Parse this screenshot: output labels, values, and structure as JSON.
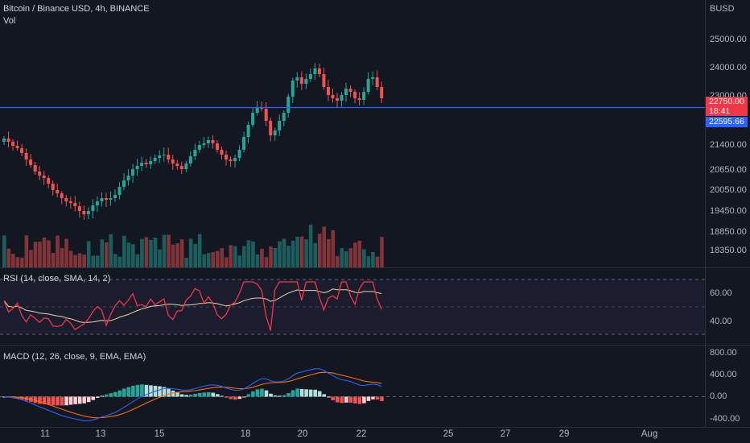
{
  "header": {
    "symbol_title": "Bitcoin / Binance USD, 4h, BINANCE",
    "volume_label": "Vol",
    "currency": "BUSD"
  },
  "price_axis": {
    "labels": [
      "25000.00",
      "24000.00",
      "23000.00",
      "21400.00",
      "20650.00",
      "20050.00",
      "19450.00",
      "18850.00",
      "18350.00"
    ],
    "current_price": "22750.00",
    "countdown": "18:41",
    "line_price": "22595.66"
  },
  "rsi": {
    "title": "RSI (14, close, SMA, 14, 2)",
    "axis_labels": [
      "60.00",
      "40.00"
    ]
  },
  "macd": {
    "title": "MACD (12, 26, close, 9, EMA, EMA)",
    "axis_labels": [
      "800.00",
      "400.00",
      "0.00",
      "-400.00"
    ]
  },
  "time_axis": {
    "labels": [
      "11",
      "13",
      "15",
      "18",
      "20",
      "22",
      "25",
      "27",
      "29",
      "Aug"
    ]
  },
  "colors": {
    "background": "#131722",
    "up": "#26a69a",
    "down": "#ef5350",
    "price_line": "#2962ff",
    "rsi_line": "#f23645",
    "rsi_ma": "#e8d8a8",
    "macd_line": "#2962ff",
    "signal_line": "#ff6d00"
  }
}
